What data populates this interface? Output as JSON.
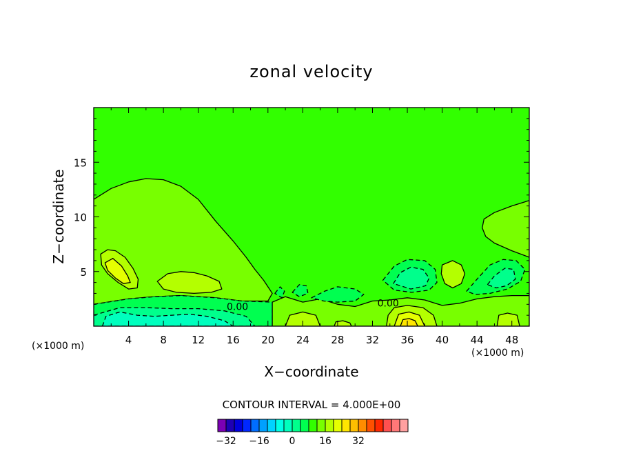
{
  "chart_data": {
    "type": "contour",
    "title": "zonal velocity",
    "xlabel": "X−coordinate",
    "ylabel": "Z−coordinate",
    "x_unit": "(×1000 m)",
    "x_unit_bottom_right": "(×1000 m)",
    "xlim": [
      0,
      50
    ],
    "ylim": [
      0,
      20
    ],
    "x_ticks": [
      4,
      8,
      12,
      16,
      20,
      24,
      28,
      32,
      36,
      40,
      44,
      48
    ],
    "y_ticks": [
      5,
      10,
      15
    ],
    "contour_interval_label": "CONTOUR INTERVAL = 4.000E+00",
    "contour_labels": [
      {
        "text": "0.00",
        "x": 16.5,
        "z": 1.8
      },
      {
        "text": "0.00",
        "x": 33.8,
        "z": 2.1
      }
    ],
    "colorbar": {
      "levels_min": -36,
      "levels_max": 36,
      "step": 4,
      "tick_values": [
        -32,
        -16,
        0,
        16,
        32
      ],
      "tick_labels": [
        "−32",
        "−16",
        "0",
        "16",
        "32"
      ],
      "colors": [
        "#7c00b4",
        "#1e00b4",
        "#0000dc",
        "#0028ff",
        "#006eff",
        "#00a0ff",
        "#00d2ff",
        "#00ffe6",
        "#00ffbe",
        "#00ff8c",
        "#00ff50",
        "#32ff00",
        "#78ff00",
        "#b4ff00",
        "#e6ff00",
        "#ffe600",
        "#ffbe00",
        "#ff8c00",
        "#ff5000",
        "#ff2800",
        "#ff5050",
        "#ff7878",
        "#ffa0a0"
      ]
    },
    "background_color": "#32ff00",
    "regions": [
      {
        "value": 2,
        "color": "#78ff00",
        "points": [
          [
            0,
            11.6
          ],
          [
            2,
            12.6
          ],
          [
            4,
            13.2
          ],
          [
            6,
            13.5
          ],
          [
            8,
            13.4
          ],
          [
            10,
            12.8
          ],
          [
            12,
            11.6
          ],
          [
            14,
            9.6
          ],
          [
            16,
            7.8
          ],
          [
            17.5,
            6.3
          ],
          [
            18.5,
            5.2
          ],
          [
            19.5,
            4.2
          ],
          [
            20.5,
            3.0
          ],
          [
            20,
            2.3
          ],
          [
            17,
            2.3
          ],
          [
            14,
            2.6
          ],
          [
            10,
            2.8
          ],
          [
            7,
            2.7
          ],
          [
            4,
            2.5
          ],
          [
            0,
            2.0
          ]
        ]
      },
      {
        "value": 2,
        "color": "#78ff00",
        "points": [
          [
            44.8,
            9.8
          ],
          [
            46,
            10.4
          ],
          [
            48,
            11.0
          ],
          [
            50,
            11.5
          ],
          [
            50,
            6.3
          ],
          [
            48,
            6.9
          ],
          [
            46,
            7.6
          ],
          [
            45,
            8.2
          ],
          [
            44.6,
            9.0
          ]
        ]
      },
      {
        "value": 6,
        "color": "#b4ff00",
        "points": [
          [
            0.8,
            6.6
          ],
          [
            1.6,
            7.0
          ],
          [
            2.5,
            6.9
          ],
          [
            3.6,
            6.3
          ],
          [
            4.5,
            5.3
          ],
          [
            5.1,
            4.3
          ],
          [
            5.0,
            3.5
          ],
          [
            4.0,
            3.4
          ],
          [
            2.8,
            4.0
          ],
          [
            1.6,
            4.8
          ],
          [
            0.9,
            5.6
          ]
        ]
      },
      {
        "value": 6,
        "color": "#b4ff00",
        "points": [
          [
            7.3,
            4.1
          ],
          [
            8.5,
            4.8
          ],
          [
            10,
            5.0
          ],
          [
            11.5,
            4.9
          ],
          [
            13,
            4.6
          ],
          [
            14.4,
            4.1
          ],
          [
            14.7,
            3.4
          ],
          [
            13.5,
            3.1
          ],
          [
            11.5,
            3.0
          ],
          [
            9.5,
            3.1
          ],
          [
            8,
            3.4
          ]
        ]
      },
      {
        "value": 6,
        "color": "#b4ff00",
        "points": [
          [
            40,
            5.6
          ],
          [
            41.2,
            6.0
          ],
          [
            42.2,
            5.6
          ],
          [
            42.6,
            4.8
          ],
          [
            42.2,
            3.9
          ],
          [
            41.2,
            3.5
          ],
          [
            40.3,
            3.9
          ],
          [
            39.9,
            4.8
          ]
        ]
      },
      {
        "value": 10,
        "color": "#e6ff00",
        "points": [
          [
            1.3,
            5.8
          ],
          [
            2.2,
            6.2
          ],
          [
            3.2,
            5.5
          ],
          [
            3.9,
            4.6
          ],
          [
            4.2,
            4.0
          ],
          [
            3.4,
            3.9
          ],
          [
            2.5,
            4.4
          ],
          [
            1.6,
            5.1
          ]
        ]
      },
      {
        "value": -2,
        "color": "#00ff50",
        "points": [
          [
            0,
            2.0
          ],
          [
            4,
            2.5
          ],
          [
            7,
            2.7
          ],
          [
            10,
            2.8
          ],
          [
            14,
            2.6
          ],
          [
            17,
            2.3
          ],
          [
            20.5,
            2.2
          ],
          [
            20.5,
            0
          ],
          [
            0,
            0
          ]
        ]
      },
      {
        "value": -6,
        "color": "#00ff8c",
        "points": [
          [
            0,
            1.0
          ],
          [
            3,
            1.7
          ],
          [
            6,
            1.7
          ],
          [
            9,
            1.6
          ],
          [
            12,
            1.6
          ],
          [
            15,
            1.4
          ],
          [
            17.5,
            0.9
          ],
          [
            18.5,
            0
          ],
          [
            0,
            0
          ]
        ]
      },
      {
        "value": -10,
        "color": "#00ffbe",
        "points": [
          [
            1,
            0
          ],
          [
            1.4,
            0.9
          ],
          [
            3,
            1.3
          ],
          [
            5,
            1.0
          ],
          [
            7,
            0.9
          ],
          [
            9,
            1.0
          ],
          [
            11,
            1.1
          ],
          [
            13,
            0.9
          ],
          [
            15,
            0.5
          ],
          [
            16,
            0
          ]
        ]
      },
      {
        "value": 2,
        "color": "#78ff00",
        "points": [
          [
            20.5,
            2.2
          ],
          [
            22,
            2.7
          ],
          [
            24,
            2.2
          ],
          [
            26,
            2.5
          ],
          [
            28,
            2.0
          ],
          [
            30,
            1.8
          ],
          [
            32,
            2.3
          ],
          [
            34,
            2.4
          ],
          [
            36,
            2.6
          ],
          [
            38,
            2.4
          ],
          [
            40,
            1.9
          ],
          [
            42,
            2.1
          ],
          [
            44,
            2.5
          ],
          [
            46,
            2.7
          ],
          [
            48,
            2.8
          ],
          [
            50,
            2.8
          ],
          [
            50,
            0
          ],
          [
            20.5,
            0
          ]
        ]
      },
      {
        "value": 6,
        "color": "#b4ff00",
        "points": [
          [
            34.5,
            1.7
          ],
          [
            36,
            1.9
          ],
          [
            37.8,
            1.7
          ],
          [
            39,
            1.0
          ],
          [
            39.4,
            0
          ],
          [
            33.6,
            0
          ],
          [
            33.8,
            1.0
          ]
        ]
      },
      {
        "value": 10,
        "color": "#e6ff00",
        "points": [
          [
            35,
            1.1
          ],
          [
            36.2,
            1.3
          ],
          [
            37.4,
            1.0
          ],
          [
            38,
            0
          ],
          [
            34.5,
            0
          ]
        ]
      },
      {
        "value": 14,
        "color": "#ffe600",
        "points": [
          [
            35.5,
            0.6
          ],
          [
            36.2,
            0.7
          ],
          [
            36.9,
            0.5
          ],
          [
            37.2,
            0
          ],
          [
            35.2,
            0
          ]
        ]
      },
      {
        "value": 6,
        "color": "#b4ff00",
        "points": [
          [
            46.5,
            1.0
          ],
          [
            47.5,
            1.2
          ],
          [
            48.6,
            1.0
          ],
          [
            48.9,
            0
          ],
          [
            46.3,
            0
          ]
        ]
      },
      {
        "value": 6,
        "color": "#b4ff00",
        "points": [
          [
            22.5,
            1.0
          ],
          [
            24,
            1.3
          ],
          [
            25.5,
            1.0
          ],
          [
            26,
            0
          ],
          [
            22,
            0
          ]
        ]
      },
      {
        "value": 6,
        "color": "#b4ff00",
        "points": [
          [
            27.8,
            0.4
          ],
          [
            28.6,
            0.5
          ],
          [
            29.4,
            0.3
          ],
          [
            29.6,
            0
          ],
          [
            27.6,
            0
          ]
        ]
      },
      {
        "value": -2,
        "color": "#00ff50",
        "points": [
          [
            25,
            2.6
          ],
          [
            26.5,
            3.2
          ],
          [
            28,
            3.6
          ],
          [
            30,
            3.4
          ],
          [
            31,
            2.9
          ],
          [
            30,
            2.3
          ],
          [
            28,
            2.2
          ],
          [
            26.4,
            2.3
          ]
        ]
      },
      {
        "value": -2,
        "color": "#00ff50",
        "points": [
          [
            33.2,
            4.2
          ],
          [
            34.5,
            5.5
          ],
          [
            36,
            6.1
          ],
          [
            38,
            6.0
          ],
          [
            39.2,
            5.2
          ],
          [
            39.4,
            4.0
          ],
          [
            38.5,
            3.3
          ],
          [
            36.5,
            3.1
          ],
          [
            34.5,
            3.3
          ]
        ]
      },
      {
        "value": -6,
        "color": "#00ff8c",
        "points": [
          [
            34.4,
            3.9
          ],
          [
            35.2,
            4.9
          ],
          [
            36.4,
            5.4
          ],
          [
            37.8,
            5.2
          ],
          [
            38.5,
            4.4
          ],
          [
            38.1,
            3.7
          ],
          [
            36.4,
            3.4
          ]
        ]
      },
      {
        "value": -2,
        "color": "#00ff50",
        "points": [
          [
            42.8,
            3.2
          ],
          [
            44,
            4.3
          ],
          [
            45.5,
            5.6
          ],
          [
            47,
            6.1
          ],
          [
            48.5,
            6.0
          ],
          [
            49.5,
            5.2
          ],
          [
            49,
            4.1
          ],
          [
            47.5,
            3.4
          ],
          [
            45.5,
            3.0
          ],
          [
            43.8,
            2.9
          ]
        ]
      },
      {
        "value": -6,
        "color": "#00ff8c",
        "points": [
          [
            45.2,
            3.8
          ],
          [
            46,
            4.6
          ],
          [
            47.2,
            5.3
          ],
          [
            48.2,
            5.2
          ],
          [
            48.4,
            4.3
          ],
          [
            47.4,
            3.7
          ],
          [
            46.2,
            3.5
          ]
        ]
      },
      {
        "value": -2,
        "color": "#00ff50",
        "points": [
          [
            22.8,
            3.1
          ],
          [
            23.6,
            3.8
          ],
          [
            24.4,
            3.7
          ],
          [
            24.6,
            3.0
          ],
          [
            23.6,
            2.7
          ]
        ]
      },
      {
        "value": -2,
        "color": "#00ff50",
        "points": [
          [
            20.8,
            3.0
          ],
          [
            21.4,
            3.6
          ],
          [
            21.9,
            3.2
          ],
          [
            21.6,
            2.6
          ]
        ]
      }
    ]
  }
}
